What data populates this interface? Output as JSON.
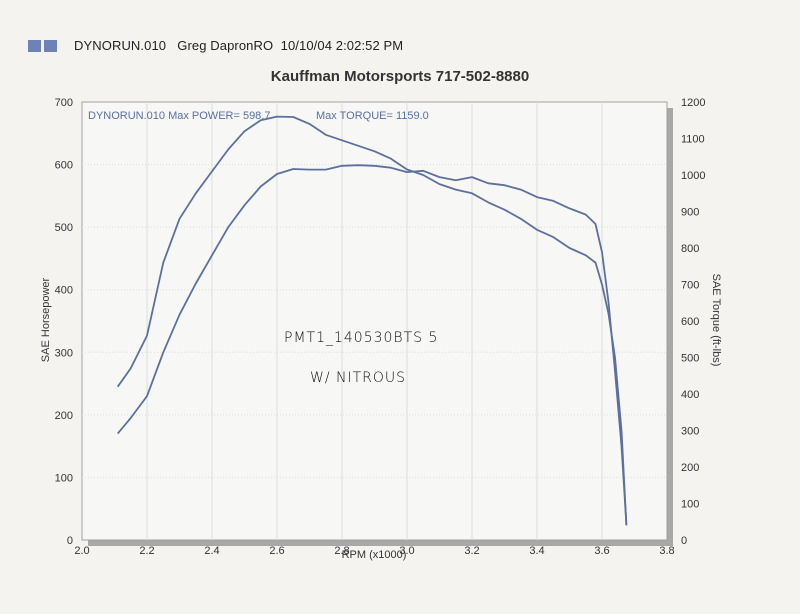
{
  "header": {
    "file": "DYNORUN.010",
    "operator": "Greg DapronRO",
    "datetime": "10/10/04 2:02:52 PM",
    "line": "DYNORUN.010   Greg DapronRO  10/10/04 2:02:52 PM"
  },
  "title": "Kauffman Motorsports 717-502-8880",
  "legend": {
    "power": "DYNORUN.010  Max POWER= 598.7",
    "torque": "Max TORQUE= 1159.0"
  },
  "annotations": {
    "line1": "PMT1_140530BTS 5",
    "line2": "W/ NITROUS"
  },
  "colors": {
    "curve": "#5d6f9e",
    "grid": "#dcdcdc",
    "frame": "#a0a0a0",
    "shadow": "#a8a8a8",
    "plot_bg": "#f7f7f5"
  },
  "chart_data": {
    "type": "line",
    "title": "Kauffman Motorsports 717-502-8880",
    "xlabel": "RPM (x1000)",
    "ylabel": "SAE Horsepower",
    "y2label": "SAE Torque (ft-lbs)",
    "xlim": [
      2.0,
      3.8
    ],
    "ylim": [
      0,
      700
    ],
    "y2lim": [
      0,
      1200
    ],
    "xticks": [
      "2.0",
      "2.2",
      "2.4",
      "2.6",
      "2.8",
      "3.0",
      "3.2",
      "3.4",
      "3.6",
      "3.8"
    ],
    "yticks": [
      "0",
      "100",
      "200",
      "300",
      "400",
      "500",
      "600",
      "700"
    ],
    "y2ticks": [
      "0",
      "100",
      "200",
      "300",
      "400",
      "500",
      "600",
      "700",
      "800",
      "900",
      "1000",
      "1100",
      "1200"
    ],
    "grid": true,
    "legend_position": "top-left inside",
    "series": [
      {
        "name": "SAE Horsepower",
        "axis": "left",
        "max": 598.7,
        "x": [
          2.11,
          2.15,
          2.2,
          2.25,
          2.3,
          2.35,
          2.4,
          2.45,
          2.5,
          2.55,
          2.6,
          2.65,
          2.7,
          2.75,
          2.8,
          2.85,
          2.9,
          2.95,
          3.0,
          3.05,
          3.1,
          3.15,
          3.2,
          3.25,
          3.3,
          3.35,
          3.4,
          3.45,
          3.5,
          3.55,
          3.58,
          3.6,
          3.62,
          3.64,
          3.66,
          3.675
        ],
        "values": [
          170,
          195,
          230,
          300,
          360,
          410,
          455,
          500,
          535,
          565,
          585,
          593,
          592,
          592,
          598,
          599,
          598,
          595,
          588,
          590,
          580,
          575,
          580,
          570,
          567,
          560,
          548,
          542,
          530,
          520,
          505,
          460,
          380,
          270,
          150,
          25
        ]
      },
      {
        "name": "SAE Torque (ft-lbs)",
        "axis": "right",
        "max": 1159.0,
        "x": [
          2.11,
          2.15,
          2.2,
          2.25,
          2.3,
          2.35,
          2.4,
          2.45,
          2.5,
          2.55,
          2.6,
          2.65,
          2.7,
          2.75,
          2.8,
          2.85,
          2.9,
          2.95,
          3.0,
          3.05,
          3.1,
          3.15,
          3.2,
          3.25,
          3.3,
          3.35,
          3.4,
          3.45,
          3.5,
          3.55,
          3.58,
          3.6,
          3.62,
          3.64,
          3.66,
          3.675
        ],
        "values": [
          420,
          470,
          560,
          760,
          880,
          950,
          1010,
          1070,
          1120,
          1150,
          1160,
          1159,
          1140,
          1110,
          1095,
          1080,
          1065,
          1045,
          1015,
          1000,
          975,
          960,
          950,
          925,
          905,
          880,
          850,
          830,
          800,
          780,
          760,
          700,
          620,
          500,
          300,
          40
        ]
      }
    ]
  }
}
